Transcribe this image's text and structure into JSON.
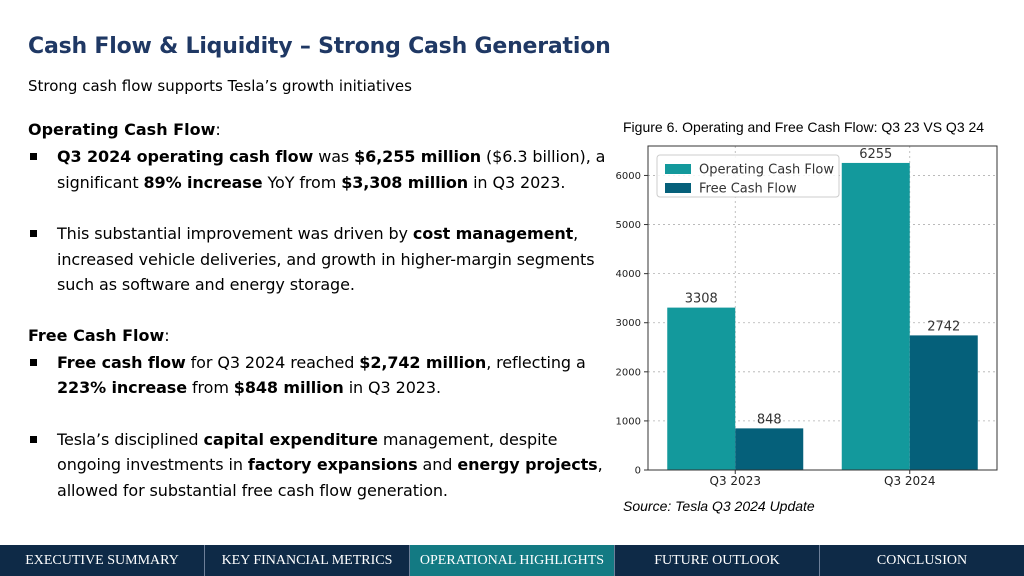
{
  "header": {
    "title": "Cash Flow & Liquidity – Strong Cash Generation",
    "subtitle": "Strong cash flow supports Tesla’s growth initiatives"
  },
  "sections": [
    {
      "heading": "Operating Cash Flow",
      "heading_suffix": ":",
      "bullets": [
        [
          {
            "t": "Q3 2024 operating cash flow",
            "b": true
          },
          {
            "t": " was "
          },
          {
            "t": "$6,255 million",
            "b": true
          },
          {
            "t": " ($6.3 billion), a significant "
          },
          {
            "t": "89% increase",
            "b": true
          },
          {
            "t": " YoY from "
          },
          {
            "t": "$3,308 million",
            "b": true
          },
          {
            "t": " in Q3 2023."
          }
        ],
        [
          {
            "t": "This substantial improvement was driven by "
          },
          {
            "t": "cost management",
            "b": true
          },
          {
            "t": ", increased vehicle deliveries, and growth in higher-margin segments such as software and energy storage."
          }
        ]
      ]
    },
    {
      "heading": "Free Cash Flow",
      "heading_suffix": ":",
      "bullets": [
        [
          {
            "t": "Free cash flow",
            "b": true
          },
          {
            "t": " for Q3 2024 reached "
          },
          {
            "t": "$2,742 million",
            "b": true
          },
          {
            "t": ", reflecting a "
          },
          {
            "t": "223% increase",
            "b": true
          },
          {
            "t": " from "
          },
          {
            "t": "$848 million",
            "b": true
          },
          {
            "t": " in Q3 2023."
          }
        ],
        [
          {
            "t": "Tesla’s disciplined "
          },
          {
            "t": "capital expenditure",
            "b": true
          },
          {
            "t": " management, despite ongoing investments in "
          },
          {
            "t": "factory expansions",
            "b": true
          },
          {
            "t": " and "
          },
          {
            "t": "energy projects",
            "b": true
          },
          {
            "t": ", allowed for substantial free cash flow generation."
          }
        ]
      ]
    }
  ],
  "figure": {
    "caption": "Figure 6. Operating and Free Cash Flow: Q3 23 VS Q3 24",
    "source": "Source: Tesla Q3 2024 Update"
  },
  "chart_data": {
    "type": "bar",
    "categories": [
      "Q3 2023",
      "Q3 2024"
    ],
    "series": [
      {
        "name": "Operating Cash Flow",
        "values": [
          3308,
          6255
        ],
        "color": "#13999c"
      },
      {
        "name": "Free Cash Flow",
        "values": [
          848,
          2742
        ],
        "color": "#05607a"
      }
    ],
    "ylim": [
      0,
      6600
    ],
    "yticks": [
      0,
      1000,
      2000,
      3000,
      4000,
      5000,
      6000
    ],
    "grid": true,
    "legend": "top-left",
    "data_labels": true
  },
  "nav": {
    "items": [
      "EXECUTIVE SUMMARY",
      "KEY FINANCIAL METRICS",
      "OPERATIONAL HIGHLIGHTS",
      "FUTURE OUTLOOK",
      "CONCLUSION"
    ],
    "active_index": 2
  },
  "colors": {
    "title": "#1f3864",
    "nav_bg": "#0e2a47",
    "nav_active": "#137a83"
  }
}
